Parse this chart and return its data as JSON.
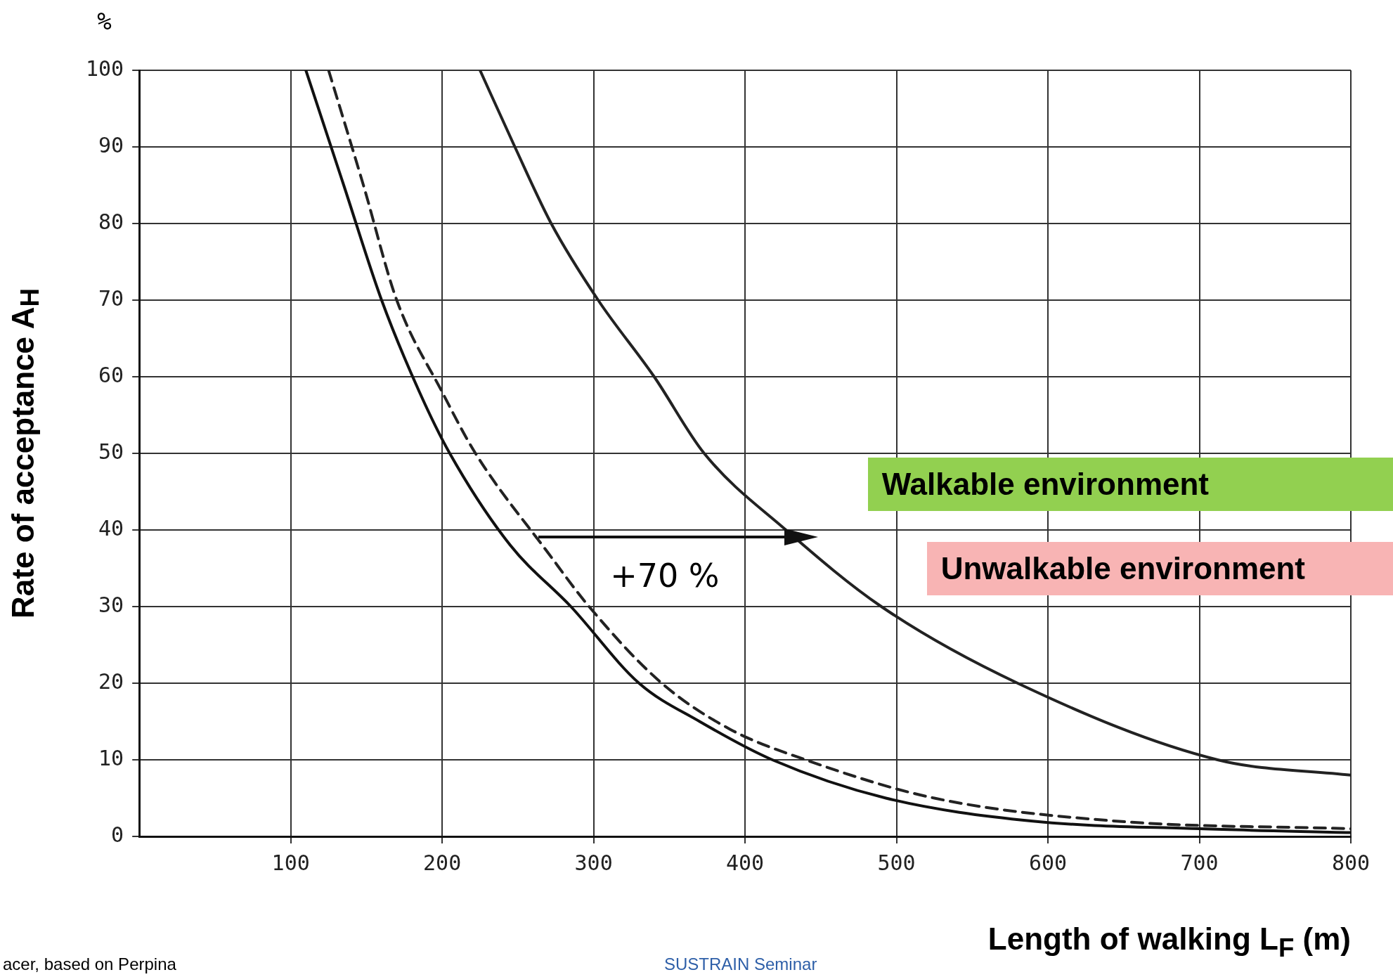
{
  "chart_data": {
    "type": "line",
    "xlabel": "Length of walking L$_{F}$ (m)",
    "ylabel": "Rate of acceptance A$_{H}$",
    "xlim": [
      0,
      800
    ],
    "xticks": [
      100,
      200,
      300,
      400,
      500,
      600,
      700,
      800
    ],
    "ylim": [
      0,
      100
    ],
    "yticks": [
      0,
      10,
      20,
      30,
      40,
      50,
      60,
      70,
      80,
      90,
      100
    ],
    "grid": true,
    "legend": false,
    "marker": "none",
    "series": [
      {
        "color": "#111111",
        "line_style": "solid",
        "x": [
          110,
          135,
          160,
          185,
          205,
          245,
          285,
          330,
          370,
          418,
          493,
          590,
          700,
          800
        ],
        "values": [
          100,
          85,
          70,
          58,
          50,
          38,
          30,
          20,
          15,
          10,
          5,
          2,
          1,
          0.5
        ]
      },
      {
        "color": "#222222",
        "line_style": "dashed",
        "x": [
          125,
          148,
          170,
          200,
          222,
          270,
          297,
          345,
          390,
          440,
          525,
          645,
          800
        ],
        "values": [
          100,
          85,
          70,
          58,
          50,
          37,
          30,
          20,
          14,
          10,
          5,
          2,
          1
        ]
      },
      {
        "color": "#222222",
        "line_style": "solid",
        "x": [
          225,
          248,
          272,
          303,
          340,
          373,
          427,
          490,
          580,
          712,
          800
        ],
        "values": [
          100,
          90,
          80,
          70,
          60,
          50,
          40,
          30,
          20,
          10,
          8
        ]
      }
    ],
    "annotations": [
      "%",
      "acer, based on Perpina",
      "SUSTRAIN Seminar",
      "Walkable environment",
      "Unwalkable environment",
      "+70 %"
    ]
  }
}
